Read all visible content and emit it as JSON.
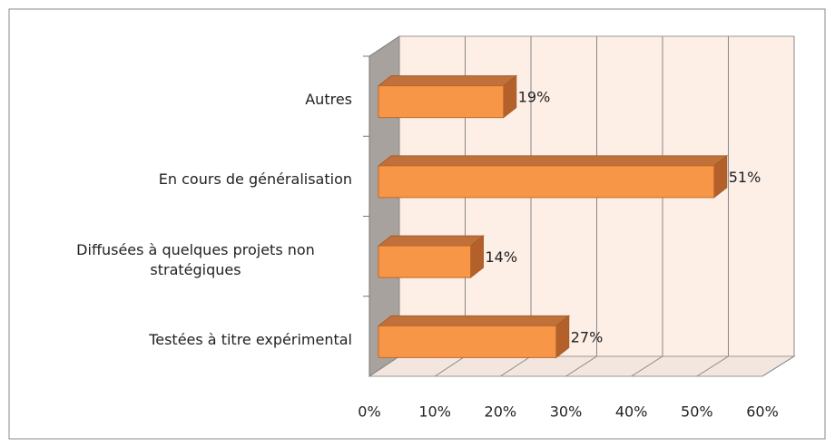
{
  "chart_data": {
    "type": "bar3d_horizontal",
    "categories": [
      "Autres",
      "En cours de généralisation",
      "Diffusées à quelques projets non stratégiques",
      "Testées à titre expérimental"
    ],
    "values": [
      19,
      51,
      14,
      27
    ],
    "value_labels": [
      "19%",
      "51%",
      "14%",
      "27%"
    ],
    "color": "#f79646",
    "xlim": [
      0,
      60
    ],
    "xticks": [
      {
        "value": 0,
        "label": "0%"
      },
      {
        "value": 10,
        "label": "10%"
      },
      {
        "value": 20,
        "label": "20%"
      },
      {
        "value": 30,
        "label": "30%"
      },
      {
        "value": 40,
        "label": "40%"
      },
      {
        "value": 50,
        "label": "50%"
      },
      {
        "value": 60,
        "label": "60%"
      }
    ],
    "grid": true
  }
}
